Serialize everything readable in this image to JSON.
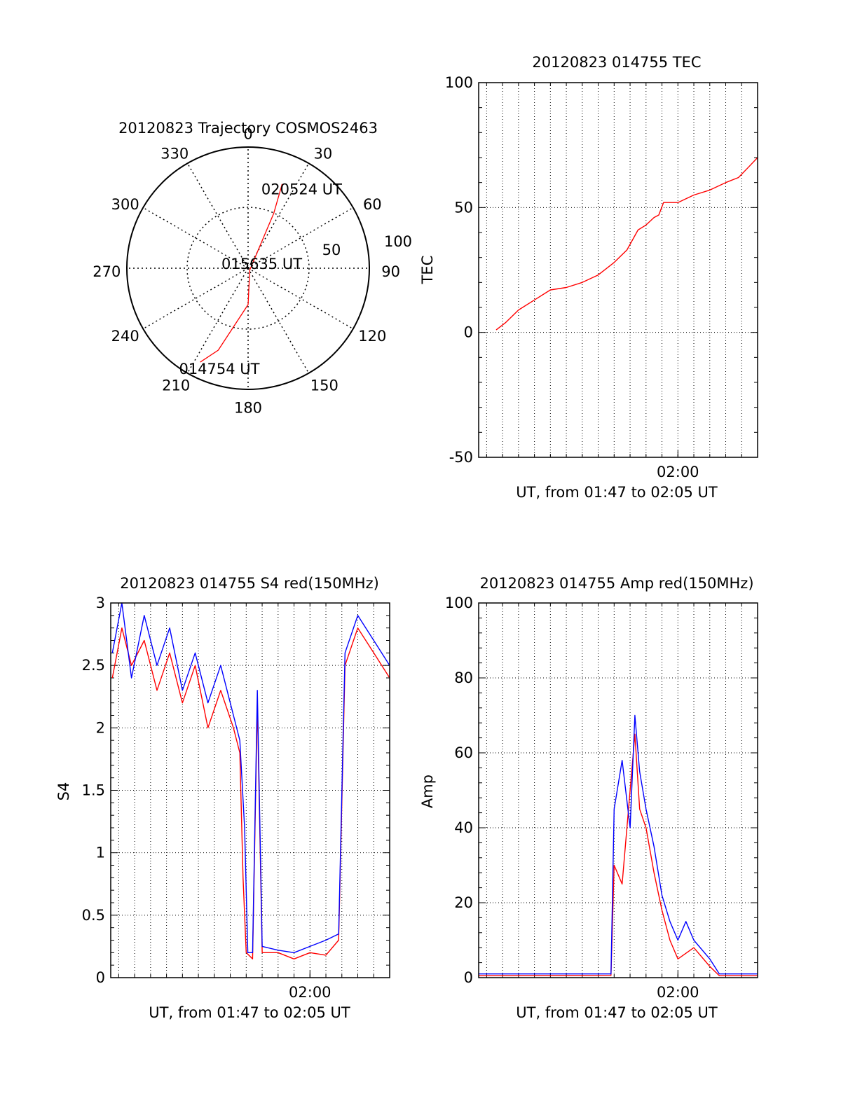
{
  "chart_data": [
    {
      "type": "polar",
      "id": "trajectory",
      "title": "20120823 Trajectory COSMOS2463",
      "angle_labels": [
        "0",
        "30",
        "60",
        "90",
        "120",
        "150",
        "180",
        "210",
        "240",
        "270",
        "300",
        "330"
      ],
      "radial_labels": [
        "50",
        "100"
      ],
      "series": [
        {
          "name": "trajectory",
          "color": "#ff0000",
          "points": [
            [
              207,
              87
            ],
            [
              200,
              72
            ],
            [
              180,
              30
            ],
            [
              137,
              2
            ],
            [
              25,
              50
            ],
            [
              22,
              75
            ]
          ]
        }
      ],
      "annotations": [
        {
          "text": "014754 UT",
          "az": 196,
          "r": 86
        },
        {
          "text": "015635 UT",
          "az": 70,
          "r": 12
        },
        {
          "text": "020524 UT",
          "az": 34,
          "r": 79
        }
      ]
    },
    {
      "type": "line",
      "id": "tec",
      "title": "20120823 014755 TEC",
      "xlabel": "UT, from 01:47 to 02:05 UT",
      "ylabel": "TEC",
      "ylim": [
        -50,
        100
      ],
      "yticks": [
        "-50",
        "0",
        "50",
        "100"
      ],
      "xlim_min": [
        107.5,
        125
      ],
      "xtick": {
        "label": "02:00",
        "min": 120
      },
      "series": [
        {
          "name": "TEC",
          "color": "#ff0000",
          "points": [
            [
              108.6,
              1
            ],
            [
              109.2,
              4
            ],
            [
              110,
              9
            ],
            [
              111,
              13
            ],
            [
              112,
              17
            ],
            [
              113,
              18
            ],
            [
              114,
              20
            ],
            [
              115,
              23
            ],
            [
              116,
              28
            ],
            [
              116.8,
              33
            ],
            [
              117.5,
              41
            ],
            [
              118,
              43
            ],
            [
              118.5,
              46
            ],
            [
              118.8,
              47
            ],
            [
              119.1,
              52
            ],
            [
              120,
              52
            ],
            [
              121,
              55
            ],
            [
              122,
              57
            ],
            [
              123,
              60
            ],
            [
              123.8,
              62
            ],
            [
              124.4,
              66
            ],
            [
              125,
              70
            ]
          ]
        }
      ]
    },
    {
      "type": "line",
      "id": "s4",
      "title": "20120823 014755 S4 red(150MHz)",
      "xlabel": "UT, from 01:47 to 02:05 UT",
      "ylabel": "S4",
      "ylim": [
        0,
        3
      ],
      "yticks": [
        "0",
        "0.5",
        "1",
        "1.5",
        "2",
        "2.5",
        "3"
      ],
      "xlim_min": [
        107.5,
        125
      ],
      "xtick": {
        "label": "02:00",
        "min": 120
      },
      "series": [
        {
          "name": "red",
          "color": "#ff0000",
          "points": [
            [
              107.6,
              2.4
            ],
            [
              108.2,
              2.8
            ],
            [
              108.8,
              2.5
            ],
            [
              109.6,
              2.7
            ],
            [
              110.4,
              2.3
            ],
            [
              111.2,
              2.6
            ],
            [
              112,
              2.2
            ],
            [
              112.8,
              2.5
            ],
            [
              113.6,
              2.0
            ],
            [
              114.4,
              2.3
            ],
            [
              115.2,
              2.0
            ],
            [
              115.6,
              1.8
            ],
            [
              115.8,
              0.8
            ],
            [
              116,
              0.2
            ],
            [
              116.4,
              0.15
            ],
            [
              116.7,
              2.2
            ],
            [
              117,
              0.2
            ],
            [
              118,
              0.2
            ],
            [
              119,
              0.15
            ],
            [
              120,
              0.2
            ],
            [
              121,
              0.18
            ],
            [
              121.8,
              0.3
            ],
            [
              122.2,
              2.5
            ],
            [
              123,
              2.8
            ],
            [
              124,
              2.6
            ],
            [
              125,
              2.4
            ]
          ]
        },
        {
          "name": "blue",
          "color": "#0000ff",
          "points": [
            [
              107.6,
              2.6
            ],
            [
              108.2,
              3.0
            ],
            [
              108.8,
              2.4
            ],
            [
              109.6,
              2.9
            ],
            [
              110.4,
              2.5
            ],
            [
              111.2,
              2.8
            ],
            [
              112,
              2.3
            ],
            [
              112.8,
              2.6
            ],
            [
              113.6,
              2.2
            ],
            [
              114.4,
              2.5
            ],
            [
              115.2,
              2.1
            ],
            [
              115.6,
              1.9
            ],
            [
              115.9,
              1.2
            ],
            [
              116.1,
              0.2
            ],
            [
              116.4,
              0.2
            ],
            [
              116.7,
              2.3
            ],
            [
              117,
              0.25
            ],
            [
              118,
              0.22
            ],
            [
              119,
              0.2
            ],
            [
              120,
              0.25
            ],
            [
              121,
              0.3
            ],
            [
              121.8,
              0.35
            ],
            [
              122.2,
              2.6
            ],
            [
              123,
              2.9
            ],
            [
              124,
              2.7
            ],
            [
              125,
              2.5
            ]
          ]
        }
      ]
    },
    {
      "type": "line",
      "id": "amp",
      "title": "20120823 014755 Amp red(150MHz)",
      "xlabel": "UT, from 01:47 to 02:05 UT",
      "ylabel": "Amp",
      "ylim": [
        0,
        100
      ],
      "yticks": [
        "0",
        "20",
        "40",
        "60",
        "80",
        "100"
      ],
      "xlim_min": [
        107.5,
        125
      ],
      "xtick": {
        "label": "02:00",
        "min": 120
      },
      "series": [
        {
          "name": "red",
          "color": "#ff0000",
          "points": [
            [
              107.5,
              0.5
            ],
            [
              115.8,
              0.6
            ],
            [
              116,
              30
            ],
            [
              116.5,
              25
            ],
            [
              117,
              50
            ],
            [
              117.3,
              65
            ],
            [
              117.6,
              45
            ],
            [
              118,
              40
            ],
            [
              118.5,
              28
            ],
            [
              119,
              18
            ],
            [
              119.5,
              10
            ],
            [
              120,
              5
            ],
            [
              121,
              8
            ],
            [
              122,
              3
            ],
            [
              122.6,
              0.5
            ],
            [
              125,
              0.5
            ]
          ]
        },
        {
          "name": "blue",
          "color": "#0000ff",
          "points": [
            [
              107.5,
              1
            ],
            [
              115.8,
              1
            ],
            [
              116,
              45
            ],
            [
              116.5,
              58
            ],
            [
              117,
              40
            ],
            [
              117.3,
              70
            ],
            [
              117.6,
              55
            ],
            [
              118,
              45
            ],
            [
              118.5,
              35
            ],
            [
              119,
              22
            ],
            [
              119.5,
              15
            ],
            [
              120,
              10
            ],
            [
              120.5,
              15
            ],
            [
              121,
              10
            ],
            [
              122,
              5
            ],
            [
              122.6,
              1
            ],
            [
              125,
              1
            ]
          ]
        }
      ]
    }
  ]
}
